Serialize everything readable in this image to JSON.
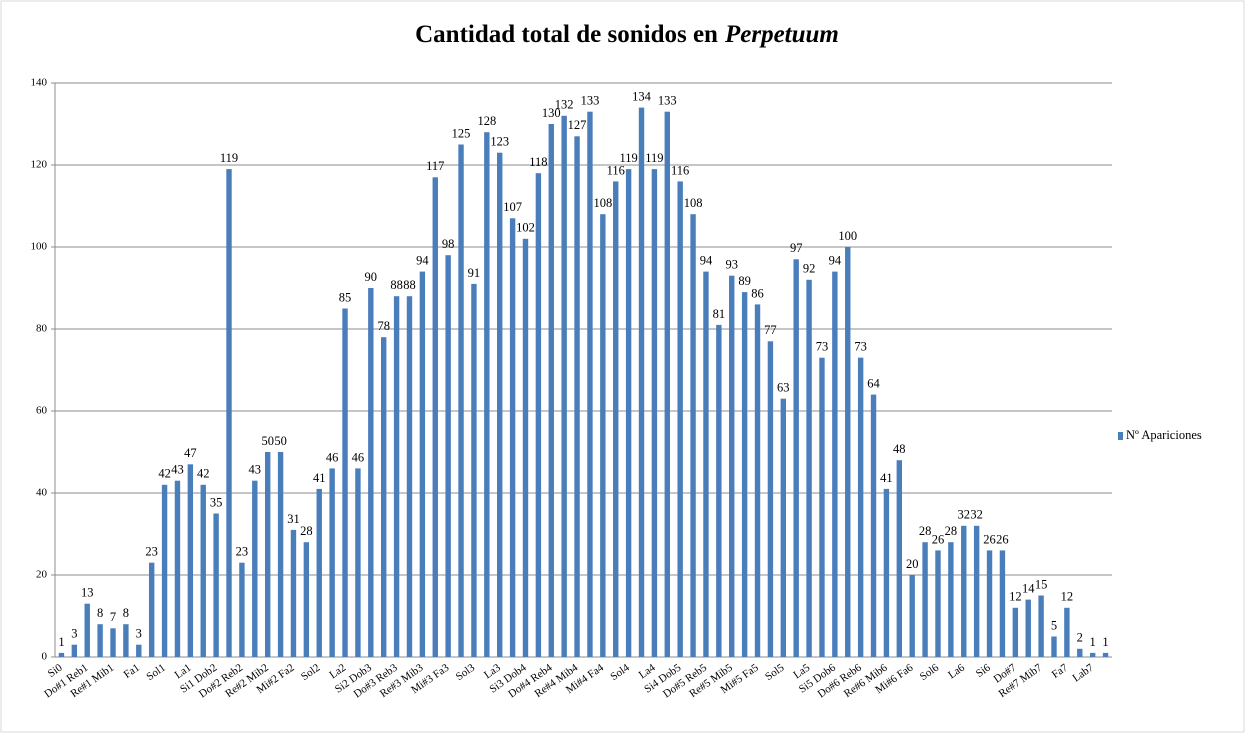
{
  "chart_data": {
    "type": "bar",
    "title": [
      "Cantidad total de sonidos en",
      "Perpetuum"
    ],
    "categories": [
      "Si0",
      null,
      "Do#1 Reb1",
      null,
      "Re#1 Mib1",
      null,
      "Fa1",
      null,
      "Sol1",
      null,
      "La1",
      null,
      "Si1 Dob2",
      null,
      "Do#2 Reb2",
      null,
      "Re#2 Mib2",
      null,
      "Mi#2 Fa2",
      null,
      "Sol2",
      null,
      "La2",
      null,
      "Si2 Dob3",
      null,
      "Do#3 Reb3",
      null,
      "Re#3 Mib3",
      null,
      "Mi#3 Fa3",
      null,
      "Sol3",
      null,
      "La3",
      null,
      "Si3 Dob4",
      null,
      "Do#4 Reb4",
      null,
      "Re#4 Mib4",
      null,
      "Mi#4 Fa4",
      null,
      "Sol4",
      null,
      "La4",
      null,
      "Si4 Dob5",
      null,
      "Do#5 Reb5",
      null,
      "Re#5 Mib5",
      null,
      "Mi#5 Fa5",
      null,
      "Sol5",
      null,
      "La5",
      null,
      "Si5 Dob6",
      null,
      "Do#6 Reb6",
      null,
      "Re#6 Mib6",
      null,
      "Mi#6 Fa6",
      null,
      "Sol6",
      null,
      "La6",
      null,
      "Si6",
      null,
      "Do#7",
      null,
      "Re#7 Mib7",
      null,
      "Fa7",
      null,
      "Lab7",
      null
    ],
    "series": [
      {
        "name": "Nº Apariciones",
        "color": "#4a7ebb",
        "values": [
          1,
          3,
          13,
          8,
          7,
          8,
          3,
          23,
          42,
          43,
          47,
          42,
          35,
          119,
          23,
          43,
          50,
          50,
          31,
          28,
          41,
          46,
          85,
          46,
          90,
          78,
          88,
          88,
          94,
          117,
          98,
          125,
          91,
          128,
          123,
          107,
          102,
          118,
          130,
          132,
          127,
          133,
          108,
          116,
          119,
          134,
          119,
          133,
          116,
          108,
          94,
          81,
          93,
          89,
          86,
          77,
          63,
          97,
          92,
          73,
          94,
          100,
          73,
          64,
          41,
          48,
          20,
          28,
          26,
          28,
          32,
          32,
          26,
          26,
          12,
          14,
          15,
          5,
          12,
          2,
          1,
          1
        ]
      }
    ],
    "ylim": [
      0,
      140
    ],
    "yticks": [
      0,
      20,
      40,
      60,
      80,
      100,
      120,
      140
    ],
    "grid": true,
    "legend": "right"
  }
}
